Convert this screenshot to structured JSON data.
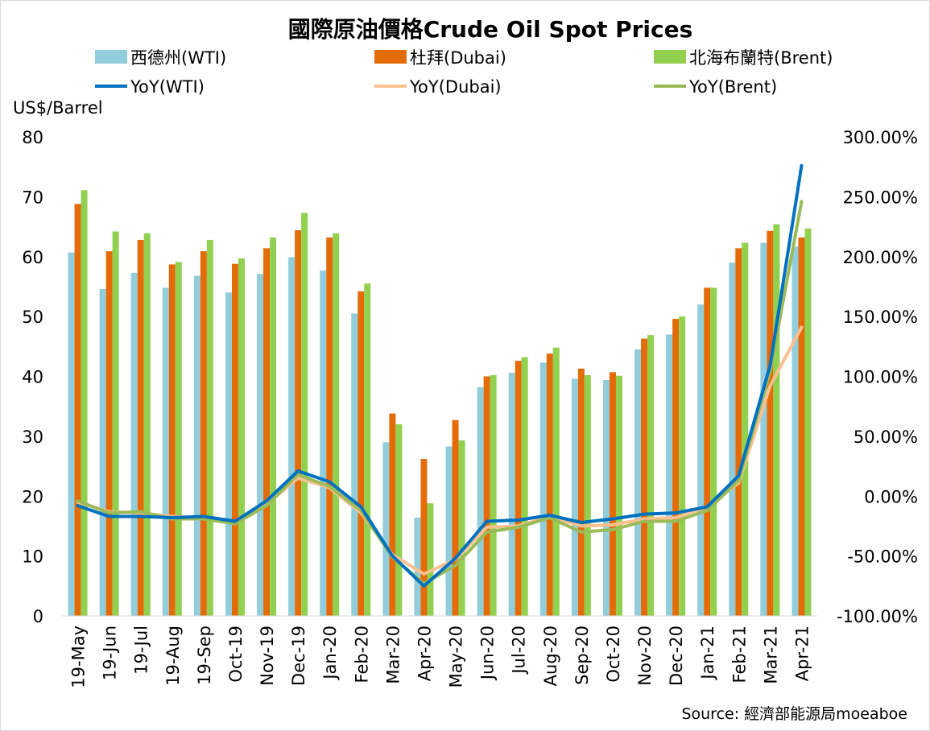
{
  "chart_data": {
    "type": "bar",
    "title": "國際原油價格Crude Oil Spot Prices",
    "ylabel": "US$/Barrel",
    "source": "Source: 經濟部能源局moeaboe",
    "ylim": [
      0,
      80
    ],
    "y_ticks": [
      "0",
      "10",
      "20",
      "30",
      "40",
      "50",
      "60",
      "70",
      "80"
    ],
    "y2lim": [
      -100,
      300
    ],
    "y2_ticks": [
      "-100.00%",
      "-50.00%",
      "0.00%",
      "50.00%",
      "100.00%",
      "150.00%",
      "200.00%",
      "250.00%",
      "300.00%"
    ],
    "grid": false,
    "legend_position": "top",
    "categories": [
      "19-May",
      "19-Jun",
      "19-Jul",
      "19-Aug",
      "19-Sep",
      "Oct-19",
      "Nov-19",
      "Dec-19",
      "Jan-20",
      "Feb-20",
      "Mar-20",
      "Apr-20",
      "May-20",
      "Jun-20",
      "Jul-20",
      "Aug-20",
      "Sep-20",
      "Oct-20",
      "Nov-20",
      "Dec-20",
      "Jan-21",
      "Feb-21",
      "Mar-21",
      "Apr-21"
    ],
    "bar_series": [
      {
        "name": "西德州(WTI)",
        "color": "#92cddc",
        "values": [
          60.7,
          54.6,
          57.3,
          54.8,
          56.8,
          54.0,
          57.1,
          59.9,
          57.7,
          50.5,
          29.0,
          16.4,
          28.3,
          38.2,
          40.6,
          42.3,
          39.6,
          39.4,
          44.5,
          47.0,
          52.0,
          59.0,
          62.3,
          61.7
        ]
      },
      {
        "name": "杜拜(Dubai)",
        "color": "#e36c09",
        "values": [
          68.8,
          60.9,
          62.8,
          58.7,
          60.9,
          58.8,
          61.4,
          64.4,
          63.2,
          54.2,
          33.8,
          26.2,
          32.7,
          40.0,
          42.6,
          43.8,
          41.3,
          40.7,
          46.3,
          49.6,
          54.8,
          61.4,
          64.3,
          63.2
        ]
      },
      {
        "name": "北海布蘭特(Brent)",
        "color": "#92d050",
        "values": [
          71.1,
          64.2,
          63.9,
          59.1,
          62.8,
          59.7,
          63.2,
          67.3,
          63.9,
          55.5,
          32.0,
          18.8,
          29.3,
          40.2,
          43.2,
          44.8,
          40.2,
          40.1,
          46.9,
          50.0,
          54.8,
          62.3,
          65.4,
          64.7
        ]
      }
    ],
    "line_series": [
      {
        "name": "YoY(WTI)",
        "color": "#0070c0",
        "values": [
          -8,
          -17,
          -17,
          -18,
          -17,
          -21,
          -4,
          21,
          12,
          -9,
          -50,
          -75,
          -52,
          -21,
          -20,
          -16,
          -22,
          -19,
          -15,
          -14,
          -9,
          17,
          109,
          276
        ]
      },
      {
        "name": "YoY(Dubai)",
        "color": "#fac090",
        "values": [
          -5,
          -13,
          -14,
          -17,
          -18,
          -22,
          -7,
          15,
          7,
          -14,
          -49,
          -65,
          -53,
          -26,
          -25,
          -17,
          -25,
          -24,
          -19,
          -18,
          -9,
          11,
          92,
          141
        ]
      },
      {
        "name": "YoY(Brent)",
        "color": "#9bbb59",
        "values": [
          -4,
          -14,
          -13,
          -19,
          -19,
          -23,
          -8,
          18,
          8,
          -12,
          -51,
          -73,
          -58,
          -30,
          -26,
          -18,
          -30,
          -28,
          -21,
          -21,
          -12,
          13,
          104,
          246
        ]
      }
    ]
  }
}
